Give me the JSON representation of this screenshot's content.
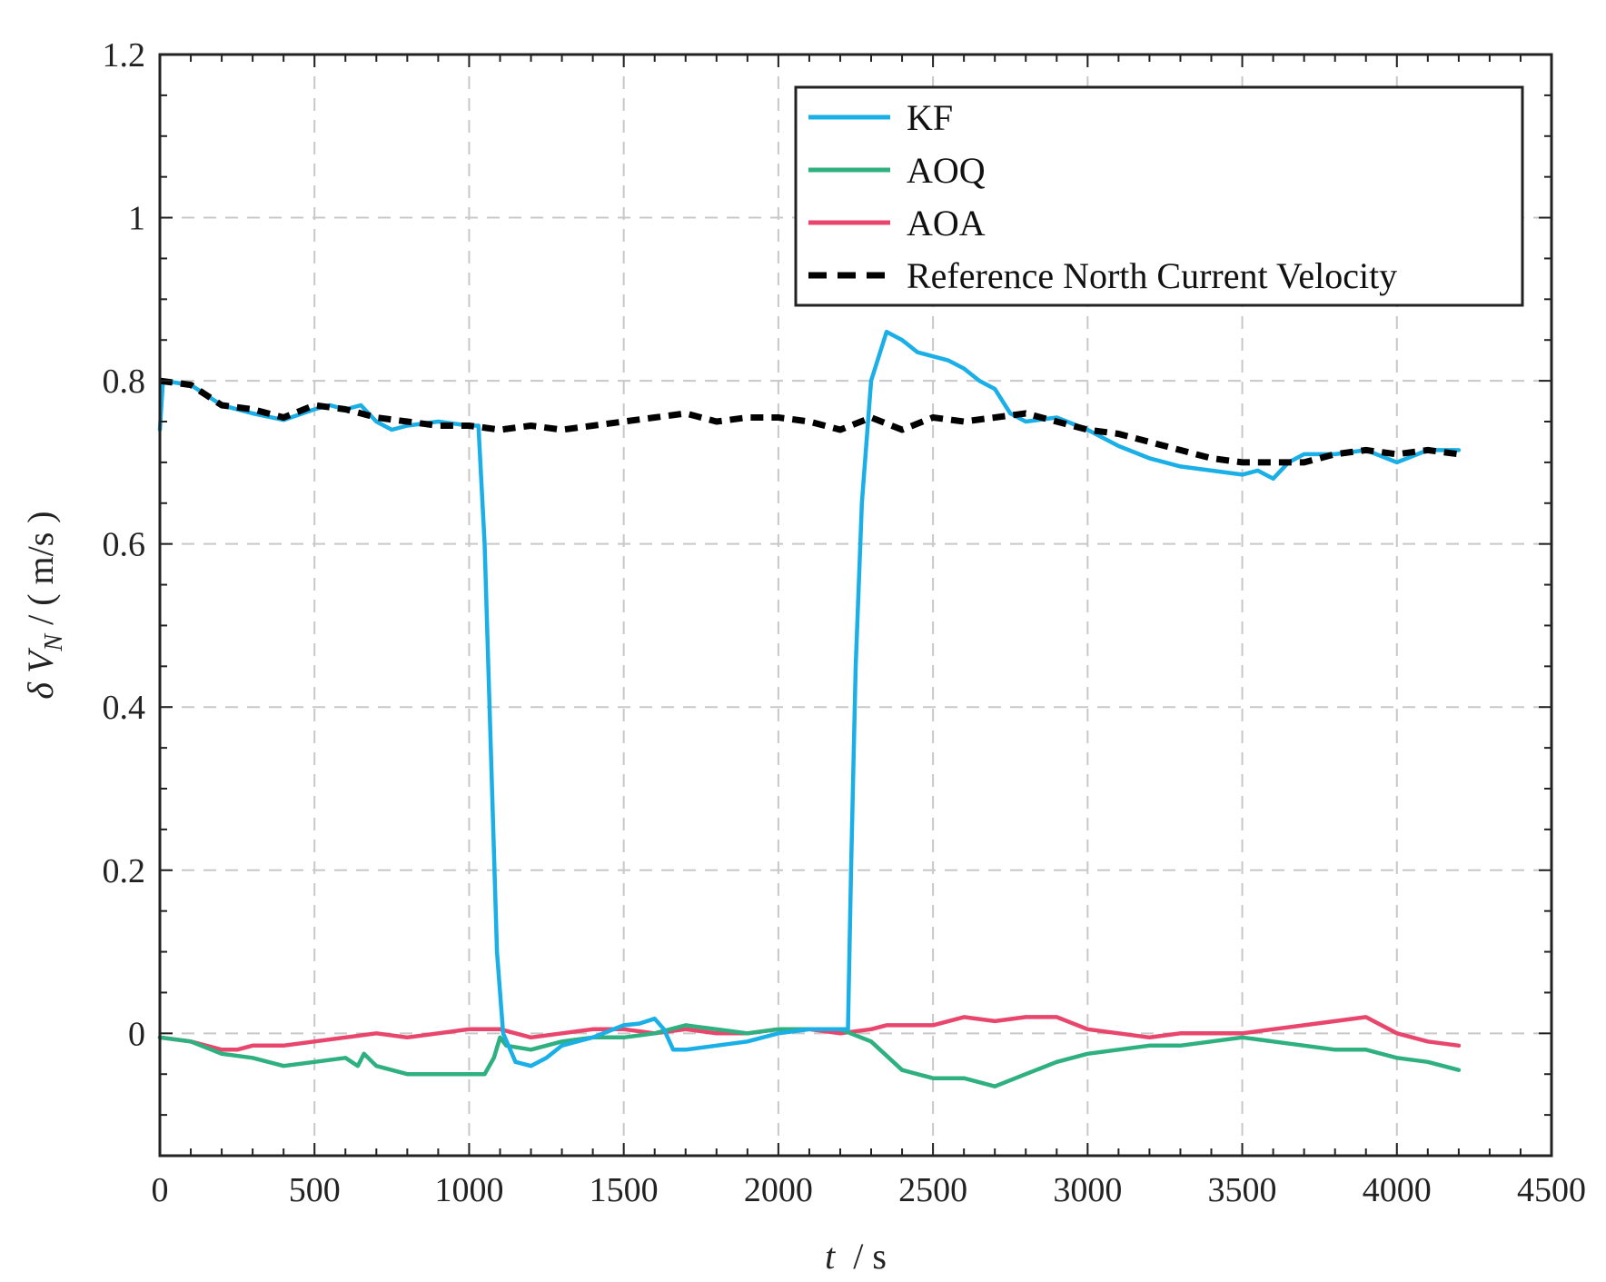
{
  "chart_data": {
    "type": "line",
    "title": "",
    "xlabel": {
      "var": "t",
      "sep": "  / ",
      "unit": "s"
    },
    "ylabel": {
      "prefix": "δ ",
      "var": "V",
      "sub": "N",
      "unit": " / ( m/s )"
    },
    "xlim": [
      0,
      4500
    ],
    "ylim": [
      -0.15,
      1.2
    ],
    "xticks": [
      0,
      500,
      1000,
      1500,
      2000,
      2500,
      3000,
      3500,
      4000,
      4500
    ],
    "yticks": [
      0,
      0.2,
      0.4,
      0.6,
      0.8,
      1,
      1.2
    ],
    "xtick_labels": [
      "0",
      "500",
      "1000",
      "1500",
      "2000",
      "2500",
      "3000",
      "3500",
      "4000",
      "4500"
    ],
    "ytick_labels": [
      "0",
      "0.2",
      "0.4",
      "0.6",
      "0.8",
      "1",
      "1.2"
    ],
    "grid": true,
    "legend_position": "top-right",
    "series": [
      {
        "name": "KF",
        "color": "#1aafe6",
        "dash": "solid",
        "points": [
          [
            0,
            0.74
          ],
          [
            10,
            0.8
          ],
          [
            100,
            0.795
          ],
          [
            200,
            0.77
          ],
          [
            300,
            0.76
          ],
          [
            400,
            0.752
          ],
          [
            500,
            0.765
          ],
          [
            550,
            0.77
          ],
          [
            600,
            0.765
          ],
          [
            650,
            0.77
          ],
          [
            700,
            0.75
          ],
          [
            750,
            0.74
          ],
          [
            800,
            0.745
          ],
          [
            900,
            0.75
          ],
          [
            1000,
            0.745
          ],
          [
            1030,
            0.745
          ],
          [
            1050,
            0.6
          ],
          [
            1070,
            0.35
          ],
          [
            1090,
            0.1
          ],
          [
            1110,
            0.0
          ],
          [
            1150,
            -0.035
          ],
          [
            1200,
            -0.04
          ],
          [
            1250,
            -0.03
          ],
          [
            1300,
            -0.015
          ],
          [
            1400,
            -0.005
          ],
          [
            1500,
            0.01
          ],
          [
            1550,
            0.012
          ],
          [
            1600,
            0.018
          ],
          [
            1630,
            0.005
          ],
          [
            1660,
            -0.02
          ],
          [
            1700,
            -0.02
          ],
          [
            1800,
            -0.015
          ],
          [
            1900,
            -0.01
          ],
          [
            2000,
            0.0
          ],
          [
            2100,
            0.005
          ],
          [
            2200,
            0.005
          ],
          [
            2225,
            0.005
          ],
          [
            2235,
            0.2
          ],
          [
            2250,
            0.45
          ],
          [
            2270,
            0.65
          ],
          [
            2300,
            0.8
          ],
          [
            2350,
            0.86
          ],
          [
            2400,
            0.85
          ],
          [
            2450,
            0.835
          ],
          [
            2500,
            0.83
          ],
          [
            2550,
            0.825
          ],
          [
            2600,
            0.815
          ],
          [
            2650,
            0.8
          ],
          [
            2700,
            0.79
          ],
          [
            2750,
            0.76
          ],
          [
            2800,
            0.75
          ],
          [
            2900,
            0.755
          ],
          [
            3000,
            0.74
          ],
          [
            3050,
            0.73
          ],
          [
            3100,
            0.72
          ],
          [
            3200,
            0.705
          ],
          [
            3300,
            0.695
          ],
          [
            3400,
            0.69
          ],
          [
            3500,
            0.685
          ],
          [
            3550,
            0.69
          ],
          [
            3600,
            0.68
          ],
          [
            3650,
            0.7
          ],
          [
            3700,
            0.71
          ],
          [
            3800,
            0.71
          ],
          [
            3900,
            0.715
          ],
          [
            4000,
            0.7
          ],
          [
            4100,
            0.715
          ],
          [
            4200,
            0.715
          ]
        ]
      },
      {
        "name": "AOQ",
        "color": "#2fb080",
        "dash": "solid",
        "points": [
          [
            0,
            -0.005
          ],
          [
            100,
            -0.01
          ],
          [
            200,
            -0.025
          ],
          [
            300,
            -0.03
          ],
          [
            400,
            -0.04
          ],
          [
            500,
            -0.035
          ],
          [
            600,
            -0.03
          ],
          [
            640,
            -0.04
          ],
          [
            660,
            -0.025
          ],
          [
            700,
            -0.04
          ],
          [
            800,
            -0.05
          ],
          [
            900,
            -0.05
          ],
          [
            1000,
            -0.05
          ],
          [
            1050,
            -0.05
          ],
          [
            1080,
            -0.03
          ],
          [
            1100,
            -0.005
          ],
          [
            1120,
            -0.015
          ],
          [
            1200,
            -0.02
          ],
          [
            1300,
            -0.01
          ],
          [
            1400,
            -0.005
          ],
          [
            1500,
            -0.005
          ],
          [
            1600,
            0.0
          ],
          [
            1700,
            0.01
          ],
          [
            1800,
            0.005
          ],
          [
            1900,
            0.0
          ],
          [
            2000,
            0.005
          ],
          [
            2100,
            0.005
          ],
          [
            2200,
            0.005
          ],
          [
            2300,
            -0.01
          ],
          [
            2400,
            -0.045
          ],
          [
            2500,
            -0.055
          ],
          [
            2600,
            -0.055
          ],
          [
            2700,
            -0.065
          ],
          [
            2800,
            -0.05
          ],
          [
            2900,
            -0.035
          ],
          [
            3000,
            -0.025
          ],
          [
            3100,
            -0.02
          ],
          [
            3200,
            -0.015
          ],
          [
            3300,
            -0.015
          ],
          [
            3400,
            -0.01
          ],
          [
            3500,
            -0.005
          ],
          [
            3600,
            -0.01
          ],
          [
            3700,
            -0.015
          ],
          [
            3800,
            -0.02
          ],
          [
            3900,
            -0.02
          ],
          [
            4000,
            -0.03
          ],
          [
            4100,
            -0.035
          ],
          [
            4200,
            -0.045
          ]
        ]
      },
      {
        "name": "AOA",
        "color": "#e8466c",
        "dash": "solid",
        "points": [
          [
            0,
            -0.005
          ],
          [
            100,
            -0.01
          ],
          [
            200,
            -0.02
          ],
          [
            250,
            -0.02
          ],
          [
            300,
            -0.015
          ],
          [
            400,
            -0.015
          ],
          [
            500,
            -0.01
          ],
          [
            600,
            -0.005
          ],
          [
            700,
            0.0
          ],
          [
            800,
            -0.005
          ],
          [
            900,
            0.0
          ],
          [
            1000,
            0.005
          ],
          [
            1100,
            0.005
          ],
          [
            1200,
            -0.005
          ],
          [
            1300,
            0.0
          ],
          [
            1400,
            0.005
          ],
          [
            1500,
            0.005
          ],
          [
            1600,
            0.0
          ],
          [
            1700,
            0.005
          ],
          [
            1800,
            0.0
          ],
          [
            1900,
            0.0
          ],
          [
            2000,
            0.005
          ],
          [
            2100,
            0.005
          ],
          [
            2200,
            0.0
          ],
          [
            2300,
            0.005
          ],
          [
            2350,
            0.01
          ],
          [
            2400,
            0.01
          ],
          [
            2500,
            0.01
          ],
          [
            2600,
            0.02
          ],
          [
            2700,
            0.015
          ],
          [
            2800,
            0.02
          ],
          [
            2900,
            0.02
          ],
          [
            3000,
            0.005
          ],
          [
            3100,
            0.0
          ],
          [
            3200,
            -0.005
          ],
          [
            3300,
            0.0
          ],
          [
            3400,
            0.0
          ],
          [
            3500,
            0.0
          ],
          [
            3600,
            0.005
          ],
          [
            3700,
            0.01
          ],
          [
            3800,
            0.015
          ],
          [
            3900,
            0.02
          ],
          [
            4000,
            0.0
          ],
          [
            4100,
            -0.01
          ],
          [
            4200,
            -0.015
          ]
        ]
      },
      {
        "name": "Reference North Current Velocity",
        "color": "#000000",
        "dash": "dashed",
        "points": [
          [
            0,
            0.8
          ],
          [
            100,
            0.795
          ],
          [
            200,
            0.77
          ],
          [
            300,
            0.765
          ],
          [
            400,
            0.755
          ],
          [
            500,
            0.77
          ],
          [
            600,
            0.765
          ],
          [
            700,
            0.755
          ],
          [
            800,
            0.75
          ],
          [
            900,
            0.745
          ],
          [
            1000,
            0.745
          ],
          [
            1100,
            0.74
          ],
          [
            1200,
            0.745
          ],
          [
            1300,
            0.74
          ],
          [
            1400,
            0.745
          ],
          [
            1500,
            0.75
          ],
          [
            1600,
            0.755
          ],
          [
            1700,
            0.76
          ],
          [
            1800,
            0.75
          ],
          [
            1900,
            0.755
          ],
          [
            2000,
            0.755
          ],
          [
            2100,
            0.75
          ],
          [
            2200,
            0.74
          ],
          [
            2300,
            0.755
          ],
          [
            2400,
            0.74
          ],
          [
            2500,
            0.755
          ],
          [
            2600,
            0.75
          ],
          [
            2700,
            0.755
          ],
          [
            2800,
            0.76
          ],
          [
            2900,
            0.75
          ],
          [
            3000,
            0.74
          ],
          [
            3100,
            0.735
          ],
          [
            3200,
            0.725
          ],
          [
            3300,
            0.715
          ],
          [
            3400,
            0.705
          ],
          [
            3500,
            0.7
          ],
          [
            3600,
            0.7
          ],
          [
            3700,
            0.7
          ],
          [
            3800,
            0.71
          ],
          [
            3900,
            0.715
          ],
          [
            4000,
            0.71
          ],
          [
            4100,
            0.715
          ],
          [
            4200,
            0.71
          ]
        ]
      }
    ]
  }
}
